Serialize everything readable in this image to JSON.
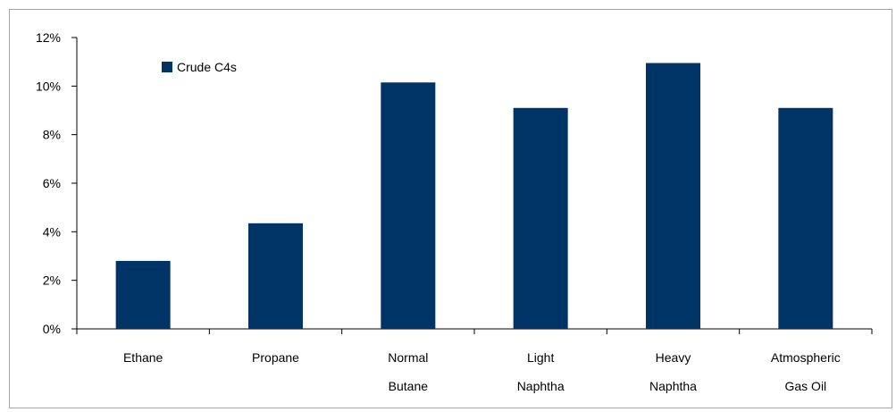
{
  "chart_data": {
    "type": "bar",
    "categories": [
      [
        "Ethane"
      ],
      [
        "Propane"
      ],
      [
        "Normal",
        "Butane"
      ],
      [
        "Light",
        "Naphtha"
      ],
      [
        "Heavy",
        "Naphtha"
      ],
      [
        "Atmospheric",
        "Gas Oil"
      ]
    ],
    "series": [
      {
        "name": "Crude C4s",
        "color": "#003366",
        "values": [
          2.8,
          4.35,
          10.15,
          9.1,
          10.95,
          9.1
        ]
      }
    ],
    "y_ticks": [
      "0%",
      "2%",
      "4%",
      "6%",
      "8%",
      "10%",
      "12%"
    ],
    "ylim": [
      0,
      12
    ],
    "y_unit": "percent",
    "title": "",
    "xlabel": "",
    "ylabel": "",
    "grid": false,
    "legend_position": "top-left"
  }
}
